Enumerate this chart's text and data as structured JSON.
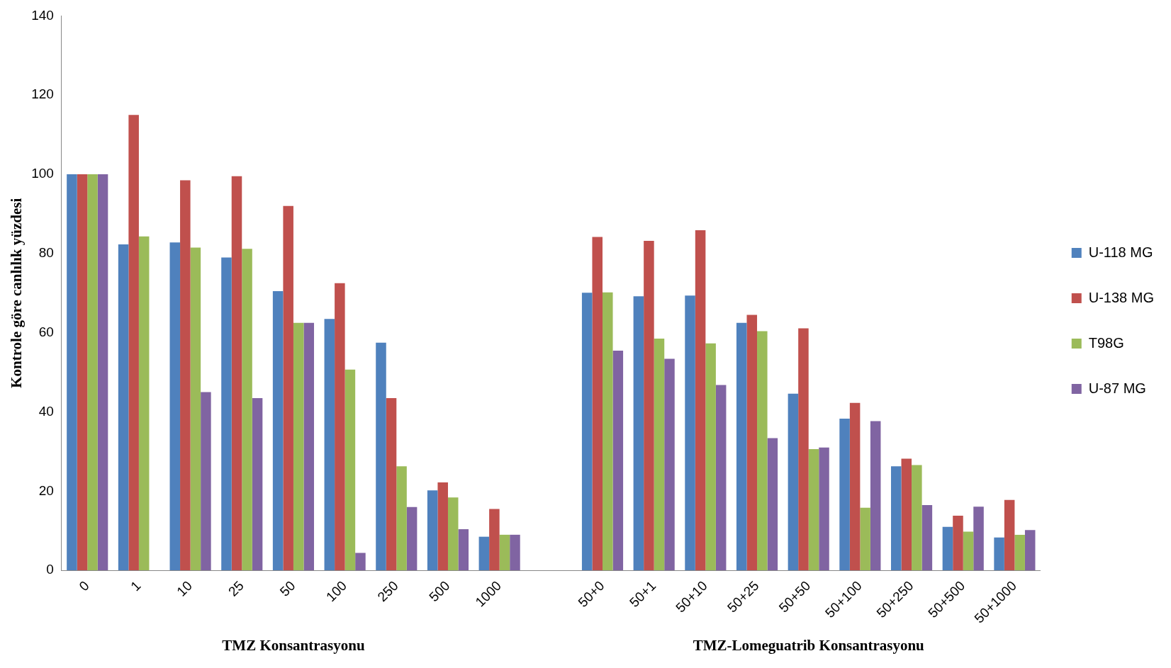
{
  "chart_data": {
    "type": "bar",
    "ylabel": "Kontrole göre canlılık yüzdesi",
    "categories": [
      "0",
      "1",
      "10",
      "25",
      "50",
      "100",
      "250",
      "500",
      "1000",
      null,
      "50+0",
      "50+1",
      "50+10",
      "50+25",
      "50+50",
      "50+100",
      "50+250",
      "50+500",
      "50+1000"
    ],
    "series": [
      {
        "name": "U-118 MG",
        "color": "#4f81bd",
        "values": [
          100,
          82.3,
          82.8,
          79,
          70.5,
          63.5,
          57.5,
          20.2,
          8.5,
          null,
          70.1,
          69.2,
          69.4,
          62.5,
          44.6,
          38.3,
          26.3,
          11,
          8.3
        ]
      },
      {
        "name": "U-138 MG",
        "color": "#c0504d",
        "values": [
          100,
          115,
          98.5,
          99.5,
          92,
          72.5,
          43.5,
          22.2,
          15.5,
          null,
          84.2,
          83.2,
          85.9,
          64.5,
          61.1,
          42.3,
          28.2,
          13.8,
          17.8
        ]
      },
      {
        "name": "T98G",
        "color": "#9bbb59",
        "values": [
          100,
          84.3,
          81.5,
          81.2,
          62.5,
          50.7,
          26.3,
          18.4,
          9,
          null,
          70.2,
          58.5,
          57.3,
          60.4,
          30.6,
          15.8,
          26.6,
          9.8,
          9
        ]
      },
      {
        "name": "U-87 MG",
        "color": "#8064a2",
        "values": [
          100,
          null,
          45,
          43.5,
          62.5,
          4.4,
          16,
          10.4,
          9,
          null,
          55.5,
          53.4,
          46.8,
          33.4,
          31,
          37.7,
          16.5,
          16.1,
          10.2
        ]
      }
    ],
    "ylim": [
      0,
      140
    ],
    "yticks": [
      0,
      20,
      40,
      60,
      80,
      100,
      120,
      140
    ],
    "grid": false,
    "legend": "right",
    "annotations": [
      "TMZ Konsantrasyonu",
      "TMZ-Lomeguatrib Konsantrasyonu"
    ]
  }
}
